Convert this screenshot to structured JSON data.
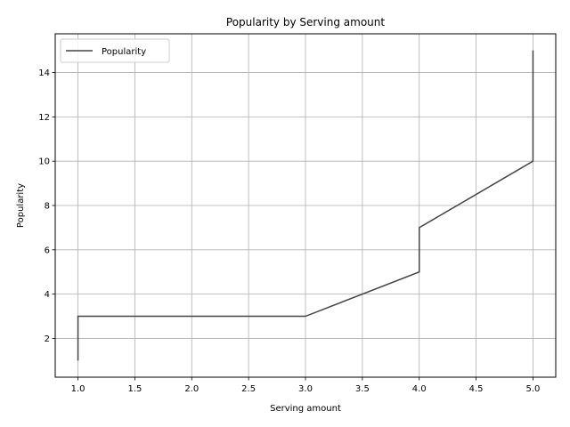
{
  "chart_data": {
    "type": "line",
    "title": "Popularity by Serving amount",
    "xlabel": "Serving amount",
    "ylabel": "Popularity",
    "xlim": [
      0.8,
      5.2
    ],
    "ylim": [
      0.25,
      15.75
    ],
    "xticks": [
      1.0,
      1.5,
      2.0,
      2.5,
      3.0,
      3.5,
      4.0,
      4.5,
      5.0
    ],
    "xtick_labels": [
      "1.0",
      "1.5",
      "2.0",
      "2.5",
      "3.0",
      "3.5",
      "4.0",
      "4.5",
      "5.0"
    ],
    "yticks": [
      2,
      4,
      6,
      8,
      10,
      12,
      14
    ],
    "ytick_labels": [
      "2",
      "4",
      "6",
      "8",
      "10",
      "12",
      "14"
    ],
    "grid": true,
    "legend_position": "top-left",
    "series": [
      {
        "name": "Popularity",
        "color": "#444444",
        "x": [
          1,
          1,
          3,
          4,
          4,
          5,
          5
        ],
        "y": [
          1,
          3,
          3,
          5,
          7,
          10,
          15
        ]
      }
    ]
  }
}
